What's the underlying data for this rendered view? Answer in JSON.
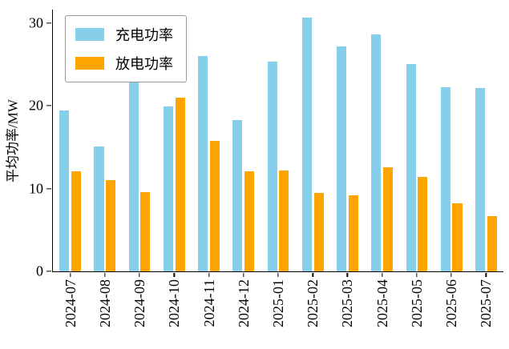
{
  "chart_data": {
    "type": "bar",
    "title": "",
    "xlabel": "",
    "ylabel": "平均功率/MW",
    "categories": [
      "2024-07",
      "2024-08",
      "2024-09",
      "2024-10",
      "2024-11",
      "2024-12",
      "2025-01",
      "2025-02",
      "2025-03",
      "2025-04",
      "2025-05",
      "2025-06",
      "2025-07"
    ],
    "series": [
      {
        "name": "充电功率",
        "color": "#87CEEB",
        "values": [
          19.4,
          15.1,
          27.5,
          19.9,
          26.0,
          18.3,
          25.3,
          30.6,
          27.2,
          28.6,
          25.0,
          22.2,
          22.1
        ]
      },
      {
        "name": "放电功率",
        "color": "#FFA500",
        "values": [
          12.1,
          11.0,
          9.6,
          21.0,
          15.8,
          12.1,
          12.2,
          9.5,
          9.2,
          12.6,
          11.4,
          8.2,
          6.7
        ]
      }
    ],
    "ylim": [
      0,
      31.6
    ],
    "yticks": [
      0,
      10,
      20,
      30
    ],
    "legend_position": "upper left",
    "grid": false,
    "axis_color": "#000000"
  }
}
